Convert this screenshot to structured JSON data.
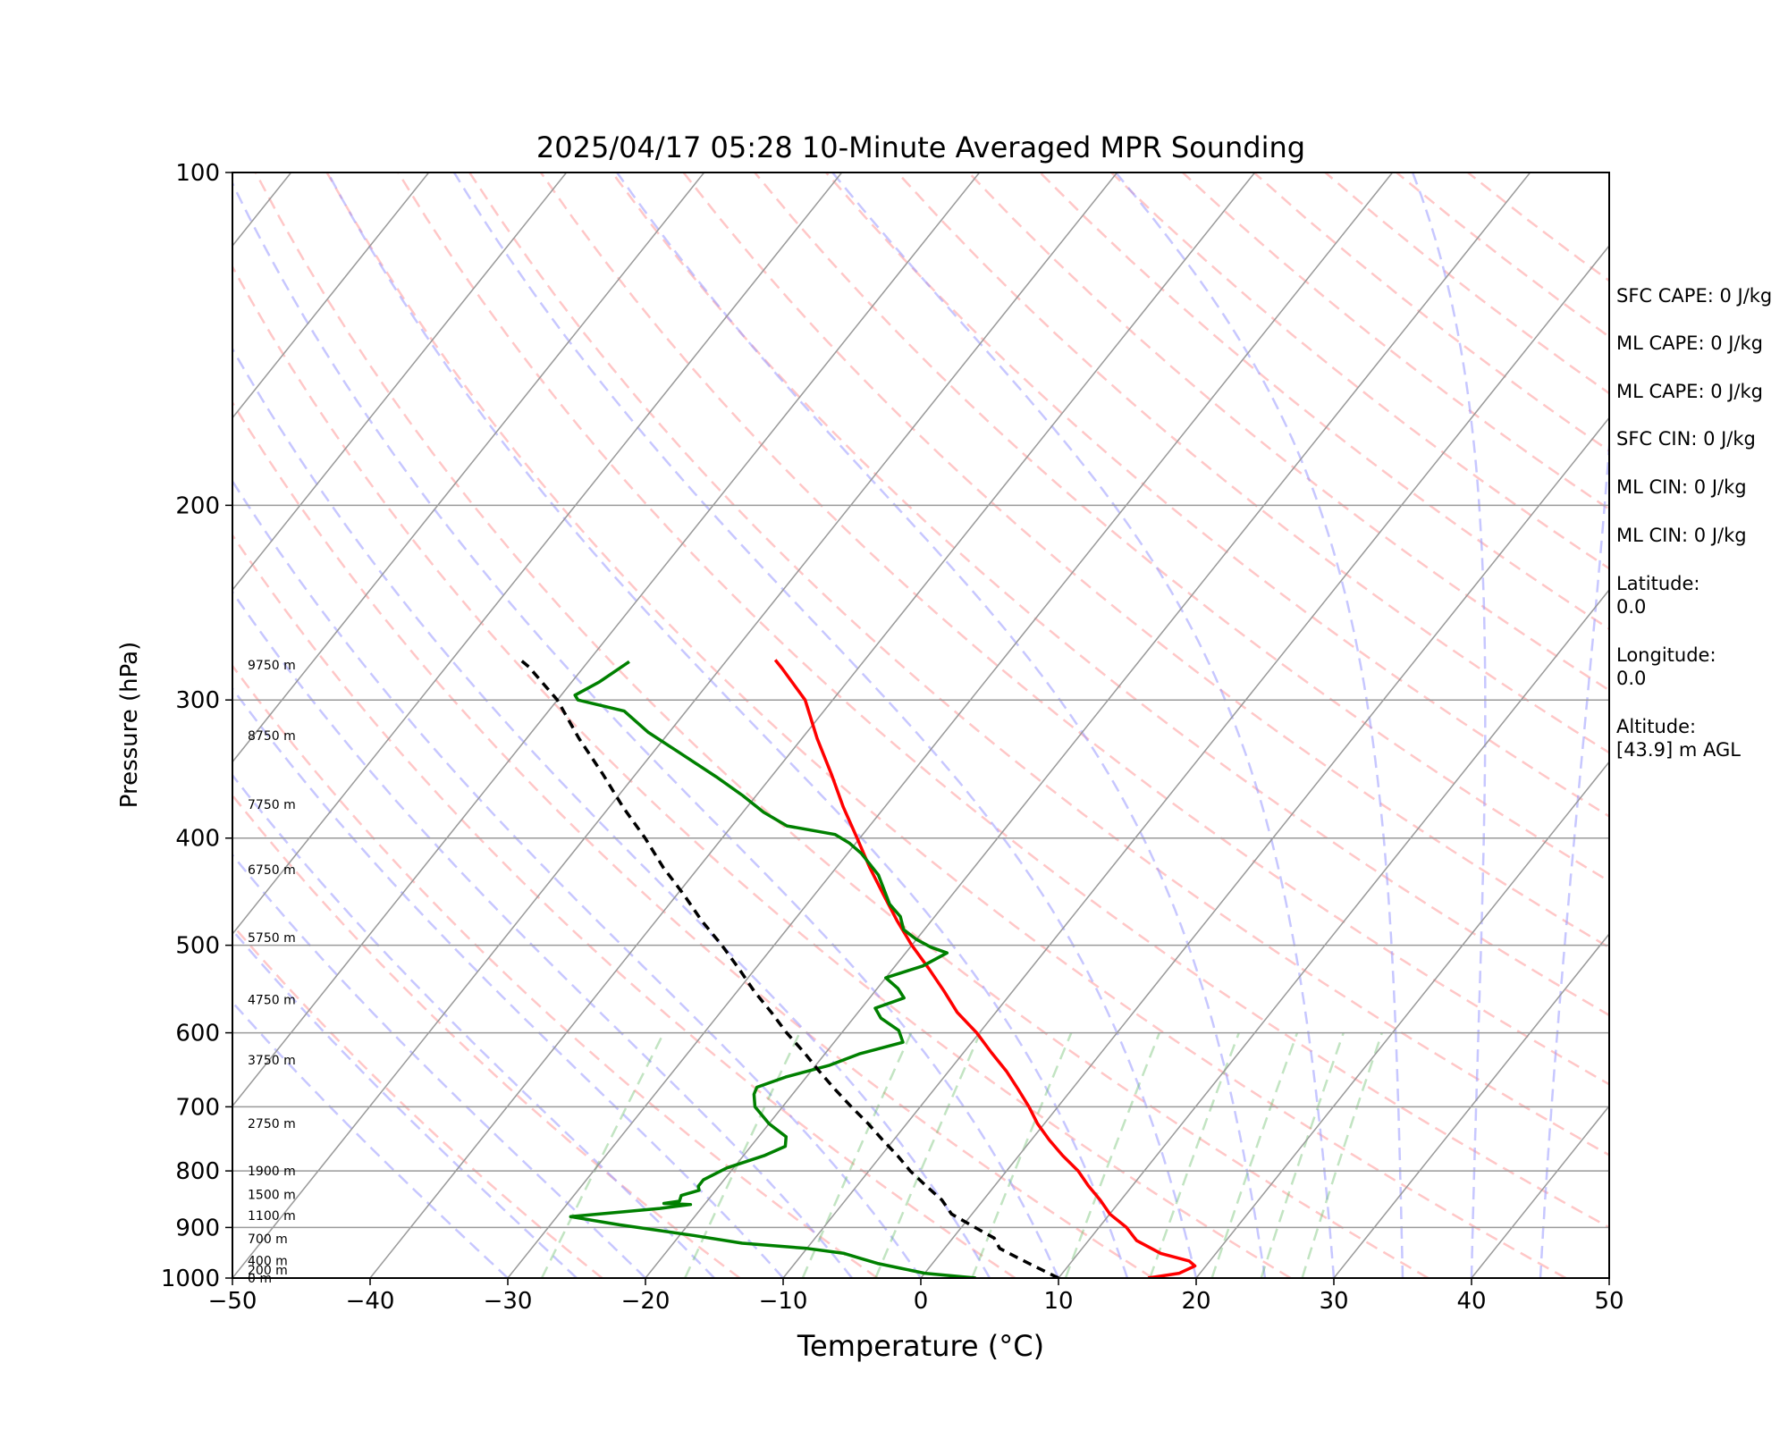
{
  "title": "2025/04/17 05:28 10-Minute Averaged MPR Sounding",
  "chart_data": {
    "type": "line",
    "subtype": "skew-T log-p diagram",
    "xlabel": "Temperature (°C)",
    "ylabel": "Pressure (hPa)",
    "xlim": [
      -50,
      50
    ],
    "ylim": [
      1000,
      100
    ],
    "y_scale": "log",
    "grid": true,
    "xticks": [
      -50,
      -40,
      -30,
      -20,
      -10,
      0,
      10,
      20,
      30,
      40,
      50
    ],
    "xtick_labels": [
      "−50",
      "−40",
      "−30",
      "−20",
      "−10",
      "0",
      "10",
      "20",
      "30",
      "40",
      "50"
    ],
    "yticks": [
      1000,
      900,
      800,
      700,
      600,
      500,
      400,
      300,
      200,
      100
    ],
    "height_labels": [
      {
        "p": 1000,
        "text": "0 m"
      },
      {
        "p": 983,
        "text": "200 m"
      },
      {
        "p": 964,
        "text": "400 m"
      },
      {
        "p": 921,
        "text": "700 m"
      },
      {
        "p": 878,
        "text": "1100 m"
      },
      {
        "p": 840,
        "text": "1500 m"
      },
      {
        "p": 800,
        "text": "1900 m"
      },
      {
        "p": 725,
        "text": "2750 m"
      },
      {
        "p": 635,
        "text": "3750 m"
      },
      {
        "p": 560,
        "text": "4750 m"
      },
      {
        "p": 492,
        "text": "5750 m"
      },
      {
        "p": 427,
        "text": "6750 m"
      },
      {
        "p": 373,
        "text": "7750 m"
      },
      {
        "p": 323,
        "text": "8750 m"
      },
      {
        "p": 279,
        "text": "9750 m"
      }
    ],
    "series": [
      {
        "color": "#ff0000",
        "style": "solid",
        "points": [
          [
            16.5,
            1000
          ],
          [
            18.5,
            990
          ],
          [
            19.2,
            975
          ],
          [
            18.5,
            965
          ],
          [
            16,
            950
          ],
          [
            13.5,
            925
          ],
          [
            12,
            900
          ],
          [
            10,
            875
          ],
          [
            8.5,
            850
          ],
          [
            6.8,
            825
          ],
          [
            5.2,
            800
          ],
          [
            3.2,
            775
          ],
          [
            1.3,
            750
          ],
          [
            -0.5,
            725
          ],
          [
            -2.1,
            700
          ],
          [
            -3.9,
            675
          ],
          [
            -5.8,
            650
          ],
          [
            -8,
            625
          ],
          [
            -10.2,
            600
          ],
          [
            -12.8,
            575
          ],
          [
            -15,
            550
          ],
          [
            -17.4,
            525
          ],
          [
            -20,
            500
          ],
          [
            -22.5,
            475
          ],
          [
            -25,
            450
          ],
          [
            -27.6,
            425
          ],
          [
            -30.2,
            400
          ],
          [
            -33,
            375
          ],
          [
            -35.8,
            350
          ],
          [
            -38.9,
            325
          ],
          [
            -42,
            300
          ],
          [
            -45.5,
            281
          ],
          [
            -46.5,
            276
          ]
        ]
      },
      {
        "color": "#008000",
        "style": "solid",
        "points": [
          [
            4,
            1000
          ],
          [
            0,
            990
          ],
          [
            -2,
            980
          ],
          [
            -4,
            970
          ],
          [
            -5.5,
            960
          ],
          [
            -7,
            950
          ],
          [
            -10,
            940
          ],
          [
            -15,
            930
          ],
          [
            -19,
            915
          ],
          [
            -25,
            895
          ],
          [
            -29,
            880
          ],
          [
            -23,
            865
          ],
          [
            -21,
            858
          ],
          [
            -23,
            856
          ],
          [
            -22,
            852
          ],
          [
            -22.2,
            842
          ],
          [
            -21.2,
            833
          ],
          [
            -21.5,
            826
          ],
          [
            -21.5,
            815
          ],
          [
            -20.5,
            795
          ],
          [
            -18.5,
            775
          ],
          [
            -17.5,
            760
          ],
          [
            -18,
            745
          ],
          [
            -20,
            725
          ],
          [
            -22,
            700
          ],
          [
            -22.8,
            682
          ],
          [
            -23,
            672
          ],
          [
            -21.5,
            658
          ],
          [
            -19,
            642
          ],
          [
            -17.5,
            627
          ],
          [
            -15,
            612
          ],
          [
            -16,
            597
          ],
          [
            -18,
            582
          ],
          [
            -19,
            570
          ],
          [
            -17.5,
            558
          ],
          [
            -18.5,
            547
          ],
          [
            -20,
            535
          ],
          [
            -18,
            522
          ],
          [
            -17,
            508
          ],
          [
            -18.5,
            502
          ],
          [
            -20,
            494
          ],
          [
            -21.5,
            484
          ],
          [
            -22.5,
            471
          ],
          [
            -24,
            459
          ],
          [
            -25,
            448
          ],
          [
            -26.5,
            432
          ],
          [
            -29,
            413
          ],
          [
            -30.5,
            404
          ],
          [
            -32,
            397
          ],
          [
            -36,
            390
          ],
          [
            -38.5,
            379
          ],
          [
            -41,
            366
          ],
          [
            -44,
            352
          ],
          [
            -48.5,
            333
          ],
          [
            -51.5,
            321
          ],
          [
            -54.5,
            307
          ],
          [
            -58.5,
            300
          ],
          [
            -59,
            297
          ],
          [
            -58,
            289
          ],
          [
            -57,
            277
          ]
        ]
      },
      {
        "color": "#000000",
        "style": "dashed",
        "points": [
          [
            10,
            1000
          ],
          [
            8,
            980
          ],
          [
            6,
            960
          ],
          [
            4,
            940
          ],
          [
            3,
            920
          ],
          [
            1,
            900
          ],
          [
            -1.5,
            875
          ],
          [
            -3,
            850
          ],
          [
            -5,
            825
          ],
          [
            -7,
            800
          ],
          [
            -8.8,
            775
          ],
          [
            -10.8,
            750
          ],
          [
            -12.8,
            725
          ],
          [
            -15,
            700
          ],
          [
            -17.2,
            675
          ],
          [
            -19.4,
            650
          ],
          [
            -21.6,
            625
          ],
          [
            -24,
            600
          ],
          [
            -26.3,
            575
          ],
          [
            -28.8,
            550
          ],
          [
            -31.2,
            525
          ],
          [
            -33.8,
            500
          ],
          [
            -36.7,
            475
          ],
          [
            -39.5,
            450
          ],
          [
            -42.6,
            425
          ],
          [
            -45.6,
            400
          ],
          [
            -49,
            375
          ],
          [
            -52.4,
            350
          ],
          [
            -56.2,
            325
          ],
          [
            -60,
            300
          ],
          [
            -64,
            280
          ],
          [
            -65,
            276
          ]
        ]
      }
    ],
    "background_lines": {
      "isotherms": "solid grey",
      "dry_adiabats": "dashed light red",
      "moist_adiabats": "dashed light blue",
      "mixing_ratio": "dashed light green"
    }
  },
  "side_panel": [
    {
      "key": "sfc_cape",
      "text": "SFC CAPE: 0 J/kg"
    },
    {
      "key": "ml_cape_1",
      "text": "ML CAPE: 0 J/kg"
    },
    {
      "key": "ml_cape_2",
      "text": "ML CAPE: 0 J/kg"
    },
    {
      "key": "sfc_cin",
      "text": "SFC CIN: 0 J/kg"
    },
    {
      "key": "ml_cin_1",
      "text": "ML CIN: 0 J/kg"
    },
    {
      "key": "ml_cin_2",
      "text": "ML CIN: 0 J/kg"
    },
    {
      "key": "latitude",
      "text": "Latitude:\n0.0"
    },
    {
      "key": "longitude",
      "text": "Longitude:\n0.0"
    },
    {
      "key": "altitude",
      "text": "Altitude:\n[43.9] m AGL"
    }
  ]
}
